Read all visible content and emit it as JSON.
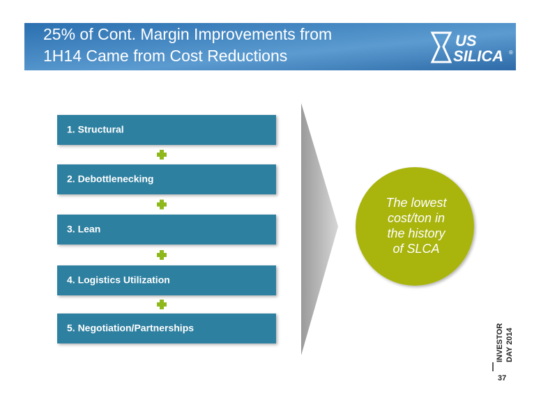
{
  "header": {
    "title_lines": [
      "25% of Cont. Margin Improvements from",
      "1H14 Came from Cost Reductions"
    ]
  },
  "logo": {
    "lines": [
      "US",
      "SILICA"
    ],
    "mark": "®"
  },
  "steps": [
    "1. Structural",
    "2. Debottlenecking",
    "3. Lean",
    "4. Logistics Utilization",
    "5. Negotiation/Partnerships"
  ],
  "callout": {
    "lines": [
      "The lowest",
      "cost/ton in",
      "the history",
      "of SLCA"
    ]
  },
  "footer": {
    "event_lines": [
      "INVESTOR",
      "DAY 2014"
    ],
    "page_number": "37"
  }
}
